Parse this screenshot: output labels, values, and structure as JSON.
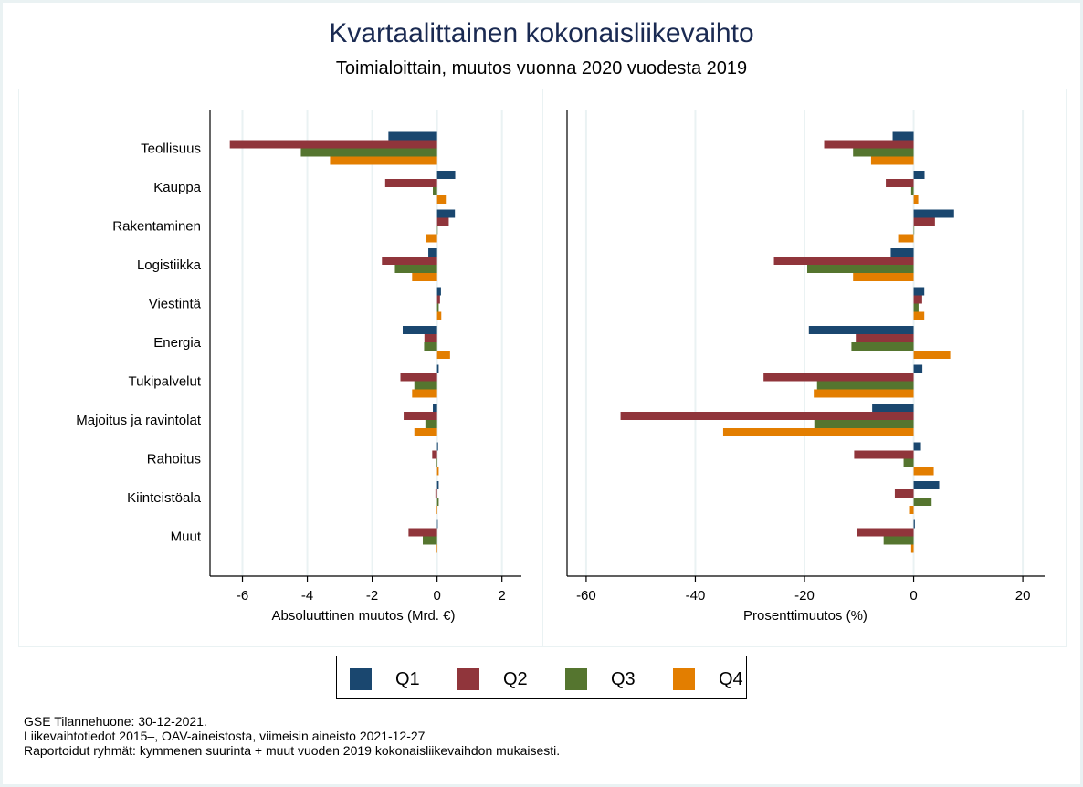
{
  "title": "Kvartaalittainen kokonaisliikevaihto",
  "subtitle": "Toimialoittain, muutos vuonna 2020 vuodesta 2019",
  "legend": [
    {
      "label": "Q1",
      "color": "#1a476f"
    },
    {
      "label": "Q2",
      "color": "#90353b"
    },
    {
      "label": "Q3",
      "color": "#55752f"
    },
    {
      "label": "Q4",
      "color": "#e37e00"
    }
  ],
  "footer": [
    "GSE Tilannehuone: 30-12-2021.",
    "Liikevaihtotiedot 2015–, OAV-aineistosta, viimeisin aineisto 2021-12-27",
    "Raportoidut ryhmät: kymmenen suurinta + muut vuoden 2019 kokonaisliikevaihdon mukaisesti."
  ],
  "chart_data": [
    {
      "type": "bar",
      "orientation": "horizontal",
      "xlabel": "Absoluuttinen muutos (Mrd. €)",
      "xlim": [
        -7.0,
        2.6
      ],
      "xticks": [
        -6,
        -4,
        -2,
        0,
        2
      ],
      "tick_labels": [
        "-6",
        "-4",
        "-2",
        "0",
        "2"
      ],
      "grid": true,
      "categories": [
        "Teollisuus",
        "Kauppa",
        "Rakentaminen",
        "Logistiikka",
        "Viestintä",
        "Energia",
        "Tukipalvelut",
        "Majoitus ja ravintolat",
        "Rahoitus",
        "Kiinteistöala",
        "Muut"
      ],
      "series": [
        {
          "name": "Q1",
          "values": [
            -1.5,
            0.56,
            0.55,
            -0.27,
            0.12,
            -1.06,
            0.05,
            -0.13,
            0.03,
            0.05,
            0.02
          ]
        },
        {
          "name": "Q2",
          "values": [
            -6.39,
            -1.6,
            0.36,
            -1.7,
            0.09,
            -0.39,
            -1.13,
            -1.03,
            -0.15,
            -0.05,
            -0.88
          ]
        },
        {
          "name": "Q3",
          "values": [
            -4.2,
            -0.13,
            0.0,
            -1.3,
            0.05,
            -0.4,
            -0.7,
            -0.36,
            -0.03,
            0.05,
            -0.44
          ]
        },
        {
          "name": "Q4",
          "values": [
            -3.3,
            0.27,
            -0.33,
            -0.77,
            0.13,
            0.4,
            -0.77,
            -0.7,
            0.05,
            -0.02,
            -0.03
          ]
        }
      ]
    },
    {
      "type": "bar",
      "orientation": "horizontal",
      "xlabel": "Prosenttimuutos (%)",
      "xlim": [
        -63.5,
        24
      ],
      "xticks": [
        -60,
        -40,
        -20,
        0,
        20
      ],
      "tick_labels": [
        "-60",
        "-40",
        "-20",
        "0",
        "20"
      ],
      "grid": true,
      "categories": [
        "Teollisuus",
        "Kauppa",
        "Rakentaminen",
        "Logistiikka",
        "Viestintä",
        "Energia",
        "Tukipalvelut",
        "Majoitus ja ravintolat",
        "Rahoitus",
        "Kiinteistöala",
        "Muut"
      ],
      "series": [
        {
          "name": "Q1",
          "values": [
            -3.85,
            2.0,
            7.4,
            -4.2,
            1.95,
            -19.2,
            1.6,
            -7.6,
            1.34,
            4.68,
            0.22
          ]
        },
        {
          "name": "Q2",
          "values": [
            -16.4,
            -5.1,
            3.9,
            -25.6,
            1.56,
            -10.6,
            -27.5,
            -53.7,
            -10.9,
            -3.45,
            -10.4
          ]
        },
        {
          "name": "Q3",
          "values": [
            -11.1,
            -0.45,
            0.0,
            -19.5,
            0.9,
            -11.4,
            -17.7,
            -18.2,
            -1.84,
            3.29,
            -5.5
          ]
        },
        {
          "name": "Q4",
          "values": [
            -7.8,
            0.84,
            -2.84,
            -11.1,
            1.95,
            6.7,
            -18.3,
            -34.9,
            3.68,
            -0.84,
            -0.45
          ]
        }
      ]
    }
  ]
}
